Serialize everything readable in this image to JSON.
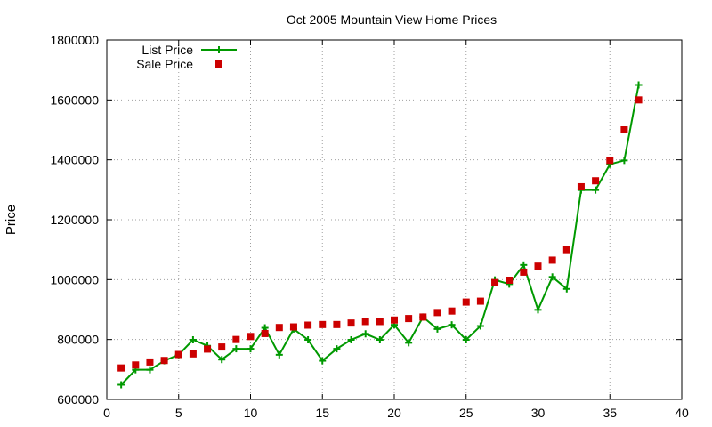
{
  "chart_data": {
    "type": "line",
    "title": "Oct 2005 Mountain View Home Prices",
    "xlabel": "",
    "ylabel": "Price",
    "xlim": [
      0,
      40
    ],
    "ylim": [
      600000,
      1800000
    ],
    "xticks": [
      0,
      5,
      10,
      15,
      20,
      25,
      30,
      35,
      40
    ],
    "yticks": [
      600000,
      800000,
      1000000,
      1200000,
      1400000,
      1600000,
      1800000
    ],
    "grid": true,
    "legend_position": "top-left",
    "series": [
      {
        "name": "List Price",
        "style": "line+cross",
        "color": "#009900",
        "x": [
          1,
          2,
          3,
          4,
          5,
          6,
          7,
          8,
          9,
          10,
          11,
          12,
          13,
          14,
          15,
          16,
          17,
          18,
          19,
          20,
          21,
          22,
          23,
          24,
          25,
          26,
          27,
          28,
          29,
          30,
          31,
          32,
          33,
          34,
          35,
          36,
          37
        ],
        "y": [
          649000,
          699000,
          699000,
          729000,
          749000,
          799000,
          779000,
          733000,
          769000,
          769000,
          839000,
          749000,
          835000,
          799000,
          729000,
          769000,
          799000,
          819000,
          799000,
          849000,
          789000,
          875000,
          835000,
          849000,
          799000,
          845000,
          999000,
          985000,
          1049000,
          899000,
          1009000,
          969000,
          1299000,
          1299000,
          1385000,
          1398000,
          1650000
        ]
      },
      {
        "name": "Sale Price",
        "style": "square",
        "color": "#cc0000",
        "x": [
          1,
          2,
          3,
          4,
          5,
          6,
          7,
          8,
          9,
          10,
          11,
          12,
          13,
          14,
          15,
          16,
          17,
          18,
          19,
          20,
          21,
          22,
          23,
          24,
          25,
          26,
          27,
          28,
          29,
          30,
          31,
          32,
          33,
          34,
          35,
          36,
          37
        ],
        "y": [
          705000,
          715000,
          725000,
          730000,
          750000,
          752000,
          768000,
          775000,
          800000,
          810000,
          820000,
          840000,
          842000,
          848000,
          850000,
          850000,
          855000,
          860000,
          860000,
          865000,
          870000,
          875000,
          890000,
          895000,
          925000,
          928000,
          990000,
          998000,
          1025000,
          1045000,
          1065000,
          1100000,
          1310000,
          1330000,
          1398000,
          1500000,
          1600000
        ]
      }
    ]
  }
}
